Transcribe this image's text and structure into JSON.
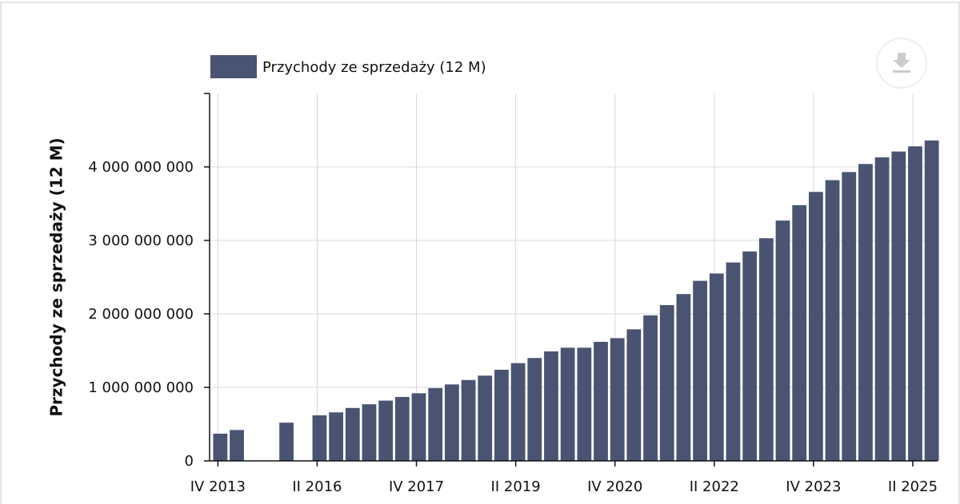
{
  "chart_data": {
    "type": "bar",
    "y_label": "Przychody ze sprzedaży (12 M)",
    "categories": [
      "IV 2013",
      null,
      null,
      null,
      null,
      null,
      "II 2016",
      null,
      null,
      null,
      null,
      null,
      "IV 2017",
      null,
      null,
      null,
      null,
      null,
      "II 2019",
      null,
      null,
      null,
      null,
      null,
      "IV 2020",
      null,
      null,
      null,
      null,
      null,
      "II 2022",
      null,
      null,
      null,
      null,
      null,
      "IV 2023",
      null,
      null,
      null,
      null,
      null,
      "II 2025",
      null
    ],
    "series": [
      {
        "name": "Przychody ze sprzedaży (12 M)",
        "color": "#4a5472",
        "values": [
          370000000,
          420000000,
          null,
          null,
          520000000,
          null,
          620000000,
          660000000,
          720000000,
          770000000,
          820000000,
          870000000,
          920000000,
          990000000,
          1040000000,
          1100000000,
          1160000000,
          1240000000,
          1330000000,
          1400000000,
          1490000000,
          1540000000,
          1540000000,
          1620000000,
          1670000000,
          1790000000,
          1980000000,
          2120000000,
          2270000000,
          2450000000,
          2550000000,
          2700000000,
          2850000000,
          3030000000,
          3270000000,
          3480000000,
          3660000000,
          3820000000,
          3930000000,
          4040000000,
          4130000000,
          4210000000,
          4280000000,
          4360000000
        ]
      }
    ],
    "ylim": [
      0,
      5000000000
    ],
    "yticks": [
      0,
      {
        "value": 1000000000,
        "label": "1 000 000 000"
      },
      {
        "value": 2000000000,
        "label": "2 000 000 000"
      },
      {
        "value": 3000000000,
        "label": "3 000 000 000"
      },
      {
        "value": 4000000000,
        "label": "4 000 000 000"
      }
    ],
    "grid": true
  }
}
